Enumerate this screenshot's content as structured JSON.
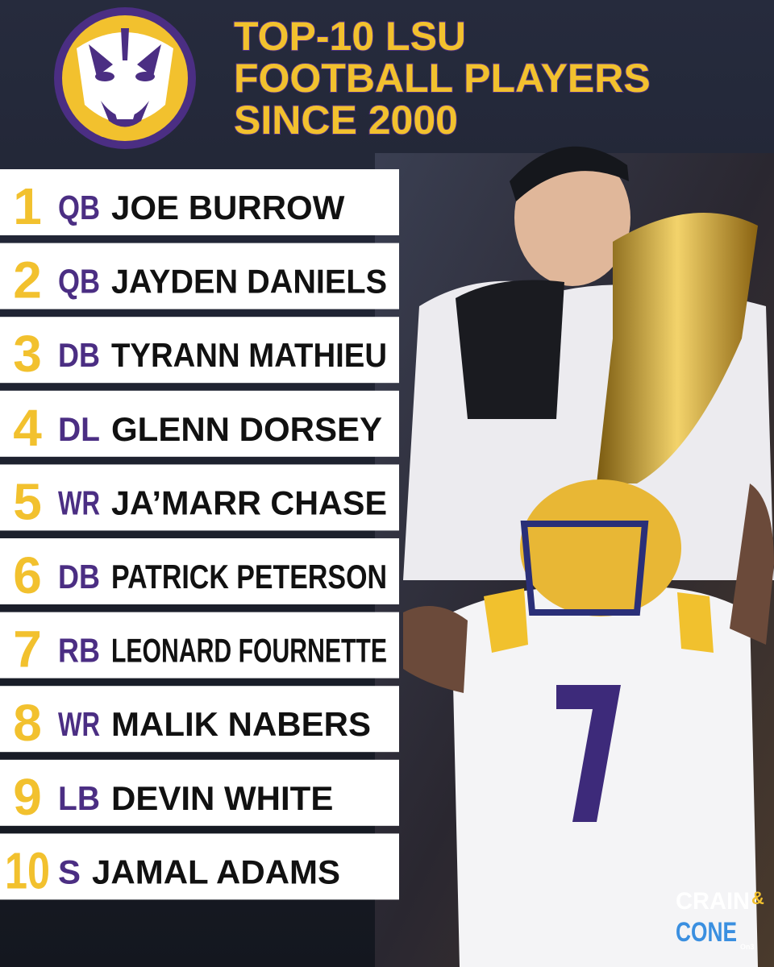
{
  "header": {
    "title": [
      "TOP-10 LSU",
      "FOOTBALL PLAYERS",
      "SINCE 2000"
    ]
  },
  "list": [
    {
      "rank": 1,
      "position": "QB",
      "name": "JOE BURROW"
    },
    {
      "rank": 2,
      "position": "QB",
      "name": "JAYDEN DANIELS"
    },
    {
      "rank": 3,
      "position": "DB",
      "name": "TYRANN MATHIEU"
    },
    {
      "rank": 4,
      "position": "DL",
      "name": "GLENN DORSEY"
    },
    {
      "rank": 5,
      "position": "WR",
      "name": "JA’MARR CHASE"
    },
    {
      "rank": 6,
      "position": "DB",
      "name": "PATRICK PETERSON"
    },
    {
      "rank": 7,
      "position": "RB",
      "name": "LEONARD FOURNETTE"
    },
    {
      "rank": 8,
      "position": "WR",
      "name": "MALIK NABERS"
    },
    {
      "rank": 9,
      "position": "LB",
      "name": "DEVIN WHITE"
    },
    {
      "rank": 10,
      "position": "S",
      "name": "JAMAL ADAMS"
    }
  ],
  "brand": {
    "name1": "CRAIN",
    "amp": "&",
    "name2": "CONE",
    "sub": "On3"
  }
}
